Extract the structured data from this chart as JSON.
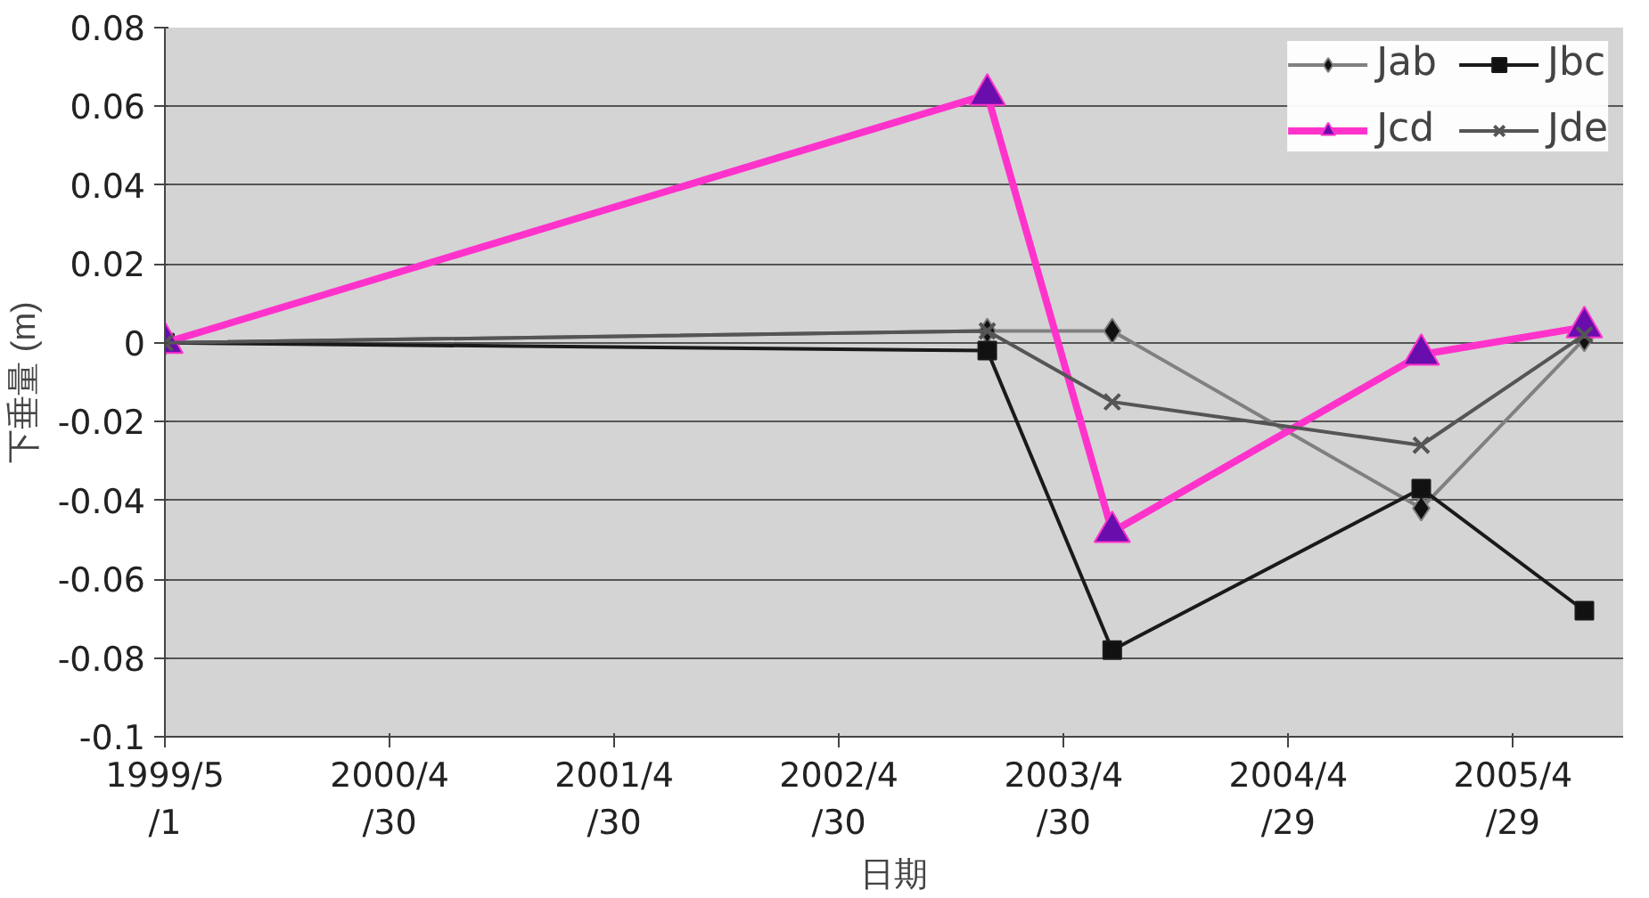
{
  "chart_data": {
    "type": "line",
    "xlabel": "日期",
    "ylabel": "下垂量 (m)",
    "x": [
      "1999-05-01",
      "2002-12-27",
      "2003-07-18",
      "2004-12-01",
      "2005-08-23"
    ],
    "series": [
      {
        "name": "Jab",
        "color": "#808080",
        "marker": "diamond",
        "values": [
          0,
          0.003,
          0.003,
          -0.042,
          0.001
        ]
      },
      {
        "name": "Jbc",
        "color": "#1a1a1a",
        "marker": "square",
        "values": [
          0,
          -0.002,
          -0.078,
          -0.037,
          -0.068
        ]
      },
      {
        "name": "Jcd",
        "color": "#ff33cc",
        "marker": "triangle",
        "values": [
          0,
          0.063,
          -0.048,
          -0.003,
          0.004
        ]
      },
      {
        "name": "Jde",
        "color": "#555555",
        "marker": "cross",
        "values": [
          0,
          0.003,
          -0.015,
          -0.026,
          0.002
        ]
      }
    ],
    "xlim": [
      "1999-05-01",
      "2005-10-25"
    ],
    "xticks": [
      {
        "value": "1999-05-01",
        "label": "1999/5\n/1"
      },
      {
        "value": "2000-04-30",
        "label": "2000/4\n/30"
      },
      {
        "value": "2001-04-30",
        "label": "2001/4\n/30"
      },
      {
        "value": "2002-04-30",
        "label": "2002/4\n/30"
      },
      {
        "value": "2003-04-30",
        "label": "2003/4\n/30"
      },
      {
        "value": "2004-04-29",
        "label": "2004/4\n/29"
      },
      {
        "value": "2005-04-29",
        "label": "2005/4\n/29"
      }
    ],
    "ylim": [
      -0.1,
      0.08
    ],
    "yticks": [
      0.08,
      0.06,
      0.04,
      0.02,
      0,
      -0.02,
      -0.04,
      -0.06,
      -0.08,
      -0.1
    ],
    "grid": "y",
    "legend": "top right",
    "line_style": "solid"
  }
}
